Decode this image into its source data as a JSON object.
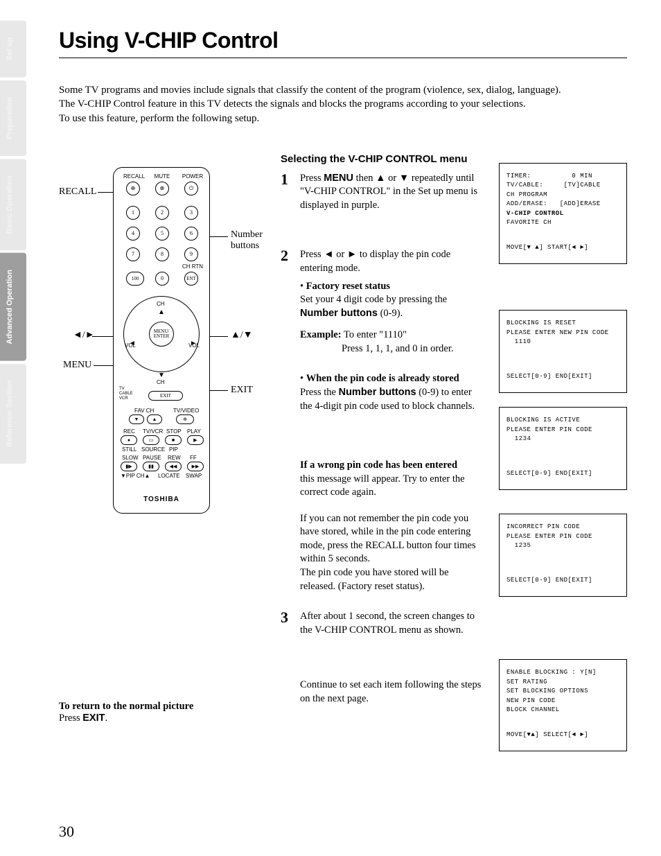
{
  "tabs": {
    "setup": "Set up",
    "preparation": "Preparation",
    "basic": "Basic Operation",
    "advanced": "Advanced Operation",
    "reference": "Reference Section"
  },
  "title": "Using V-CHIP Control",
  "intro_l1": "Some TV programs and movies include signals that classify the content of the program (violence, sex, dialog, language).",
  "intro_l2": "The V-CHIP Control feature in this TV detects the signals and blocks the programs according to your selections.",
  "intro_l3": "To use this feature, perform the following setup.",
  "section_head": "Selecting the V-CHIP CONTROL menu",
  "step1": {
    "num": "1",
    "t1": "Press ",
    "menu": "MENU",
    "t2": " then ▲ or ▼ repeatedly until \"V-CHIP CONTROL\" in the Set up menu is displayed in purple."
  },
  "step2": {
    "num": "2",
    "t1": "Press ◄ or ► to display the pin code entering mode.",
    "b1_lead": "Factory reset status",
    "b1_body": "Set your 4 digit code by pressing the ",
    "b1_bold": "Number buttons",
    "b1_tail": " (0-9).",
    "ex_lbl": "Example:",
    "ex_t1": " To enter \"1110\"",
    "ex_t2": "Press 1, 1, 1, and 0 in order.",
    "b2_lead": "When the pin code is already stored",
    "b2_t1": "Press the ",
    "b2_bold": "Number buttons",
    "b2_t2": " (0-9) to enter the 4-digit pin code used to block channels."
  },
  "wrong": {
    "lead": "If a wrong pin code has been entered",
    "p1": "this message will appear. Try to enter the correct code again.",
    "p2a": "If you can not remember the pin code you have stored, while in the pin code entering mode, press the ",
    "recall": "RECALL",
    "p2b": " button four times within 5 seconds.",
    "p3": "The pin code you have stored will be released. (Factory reset status)."
  },
  "step3": {
    "num": "3",
    "body": "After about 1 second, the screen changes to the V-CHIP CONTROL menu as shown."
  },
  "continue": "Continue to set each item following the steps on the next page.",
  "return": {
    "lead": "To return to the normal picture",
    "t1": "Press ",
    "exit": "EXIT",
    "t2": "."
  },
  "osd1": "TIMER:          0 MIN\nTV/CABLE:     [TV]CABLE\nCH PROGRAM\nADD/ERASE:   [ADD]ERASE\nV-CHIP CONTROL\nFAVORITE CH",
  "osd1_hi_line": 4,
  "osd1_footer": "MOVE[▼ ▲] START[◄ ►]",
  "osd2": "BLOCKING IS RESET\nPLEASE ENTER NEW PIN CODE\n  1110",
  "osd2_footer": "SELECT[0-9] END[EXIT]",
  "osd3": "BLOCKING IS ACTIVE\nPLEASE ENTER PIN CODE\n  1234",
  "osd3_footer": "SELECT[0-9] END[EXIT]",
  "osd4": "INCORRECT PIN CODE\nPLEASE ENTER PIN CODE\n  1235",
  "osd4_footer": "SELECT[0-9] END[EXIT]",
  "osd5": "ENABLE BLOCKING : Y[N]\nSET RATING\nSET BLOCKING OPTIONS\nNEW PIN CODE\nBLOCK CHANNEL",
  "osd5_footer": "MOVE[▼▲] SELECT[◄ ►]",
  "remote": {
    "callouts": {
      "recall": "RECALL",
      "numbers_l1": "Number",
      "numbers_l2": "buttons",
      "lr": "◄/►",
      "ud": "▲/▼",
      "menu": "MENU",
      "exit": "EXIT"
    },
    "labels": {
      "recall": "RECALL",
      "mute": "MUTE",
      "power": "POWER",
      "chrtn": "CH RTN",
      "ent": "ENT",
      "hundred": "100",
      "ch": "CH",
      "vol": "VOL",
      "menu_enter": "MENU/\nENTER",
      "tv": "TV",
      "cable": "CABLE",
      "vcr": "VCR",
      "exit": "EXIT",
      "favch": "FAV CH",
      "tvvideo": "TV/VIDEO",
      "rec": "REC",
      "tvvcr": "TV/VCR",
      "stop": "STOP",
      "play": "PLAY",
      "still": "STILL",
      "source": "SOURCE",
      "pip": "PIP",
      "slow": "SLOW",
      "pause": "PAUSE",
      "rew": "REW",
      "ff": "FF",
      "pipch": "▼PIP CH▲",
      "locate": "LOCATE",
      "swap": "SWAP"
    },
    "brand": "TOSHIBA",
    "nums": [
      "1",
      "2",
      "3",
      "4",
      "5",
      "6",
      "7",
      "8",
      "9",
      "0"
    ]
  },
  "page_number": "30"
}
